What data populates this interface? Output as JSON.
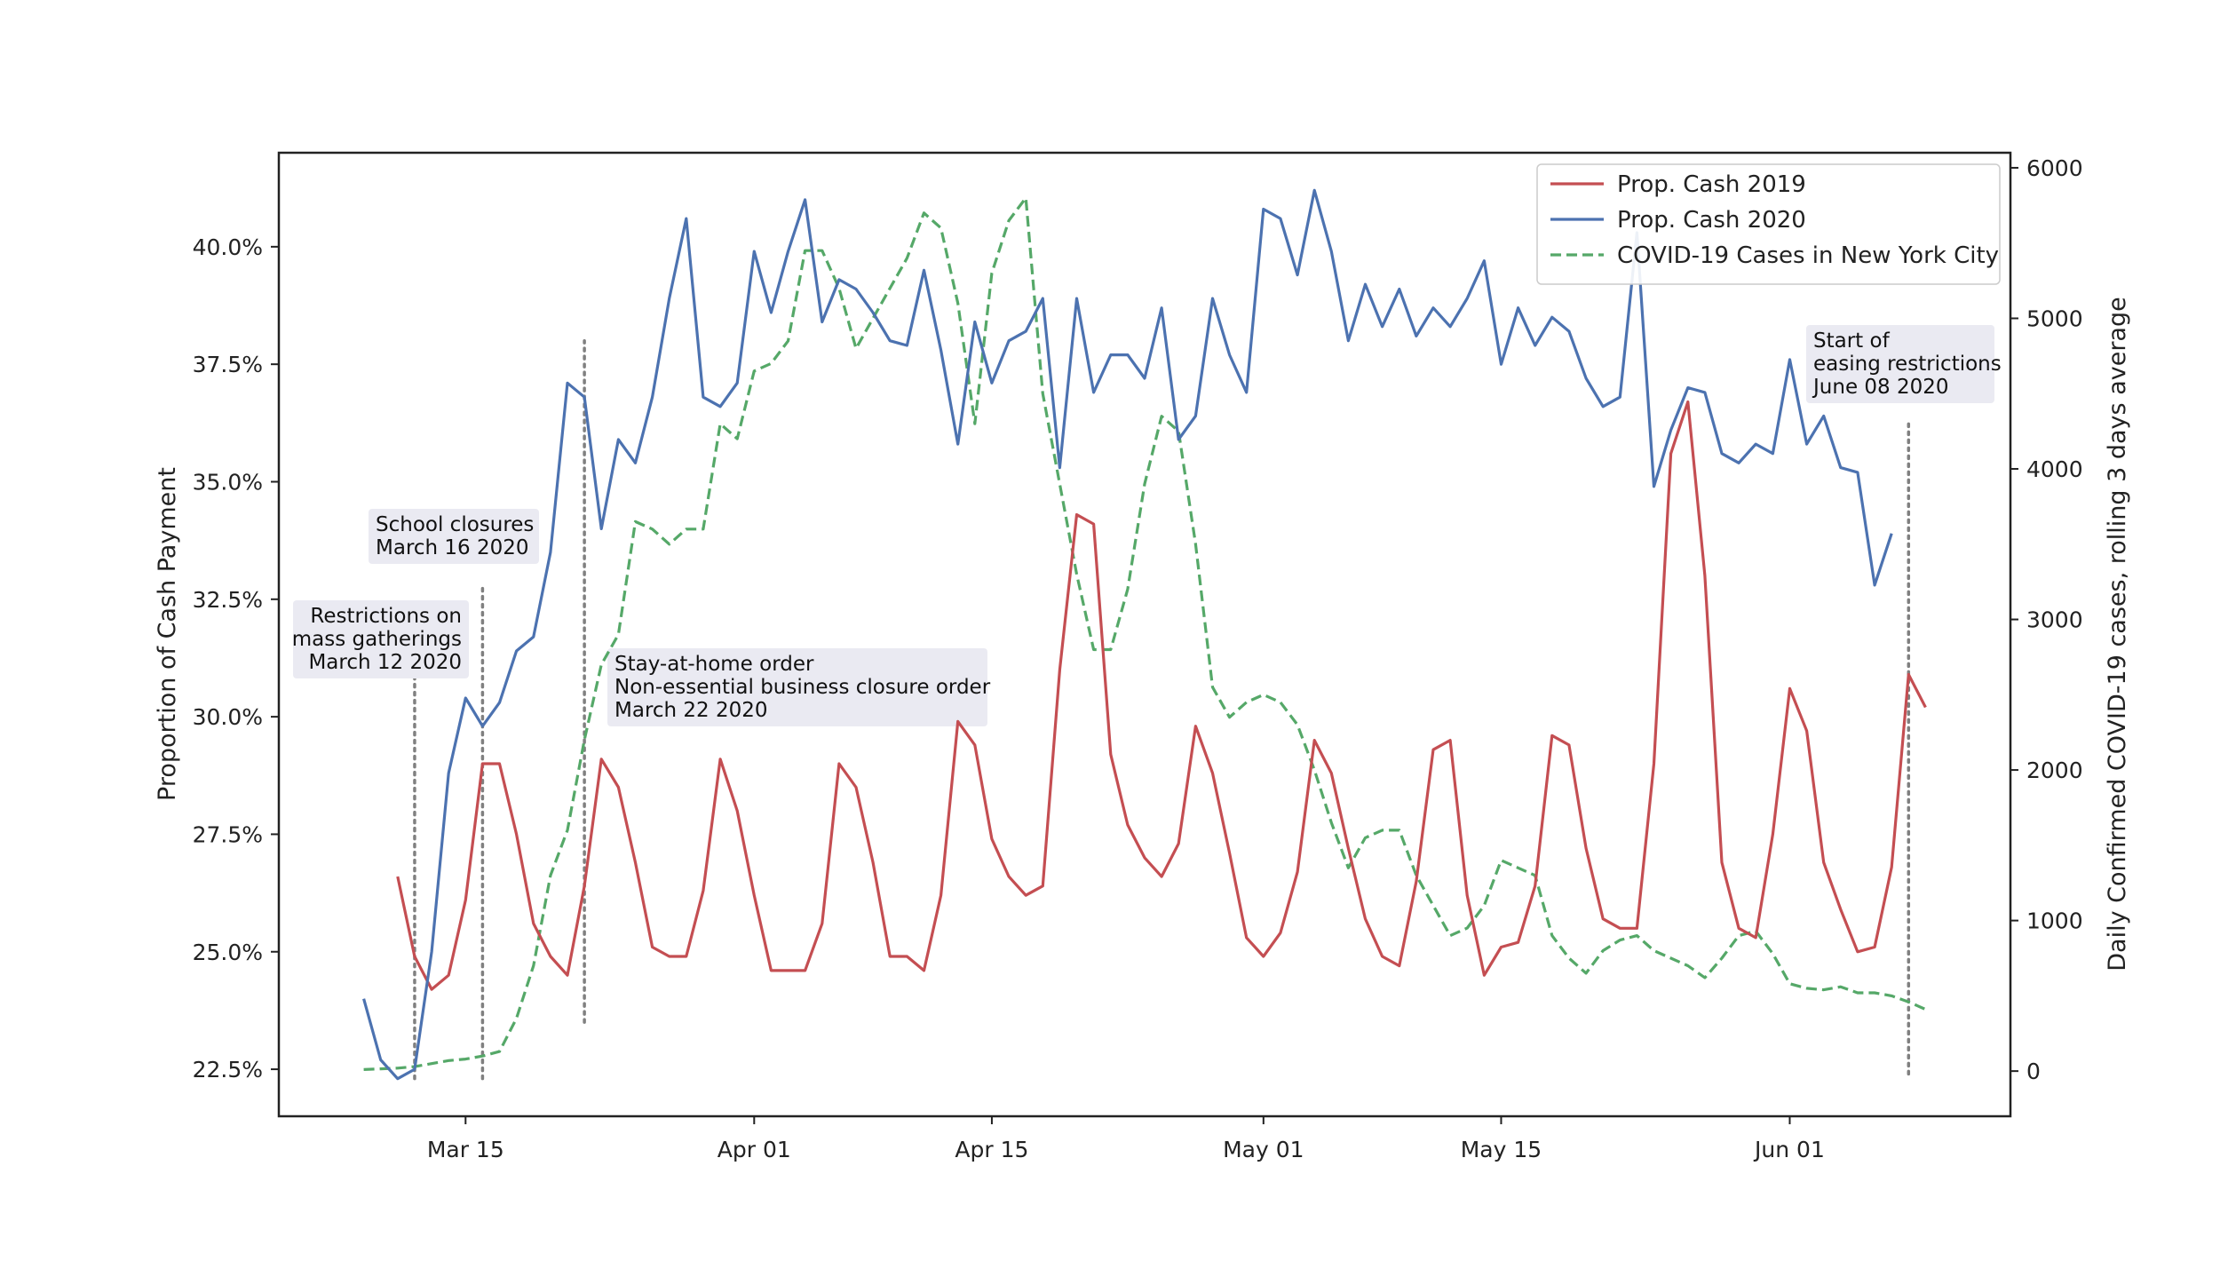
{
  "chart_data": {
    "type": "line",
    "title": "",
    "xlabel": "",
    "ylabel_left": "Proportion of Cash Payment",
    "ylabel_right": "Daily Confirmed COVID-19 cases, rolling 3 days average",
    "x_start_date": "2020-03-09",
    "x_ticks": [
      {
        "date": "2020-03-15",
        "label": "Mar 15"
      },
      {
        "date": "2020-04-01",
        "label": "Apr 01"
      },
      {
        "date": "2020-04-15",
        "label": "Apr 15"
      },
      {
        "date": "2020-05-01",
        "label": "May 01"
      },
      {
        "date": "2020-05-15",
        "label": "May 15"
      },
      {
        "date": "2020-06-01",
        "label": "Jun 01"
      }
    ],
    "xlim": [
      "2020-03-04",
      "2020-06-14"
    ],
    "ylim_left": [
      21.5,
      42
    ],
    "yticks_left": [
      {
        "value": 22.5,
        "label": "22.5%"
      },
      {
        "value": 25.0,
        "label": "25.0%"
      },
      {
        "value": 27.5,
        "label": "27.5%"
      },
      {
        "value": 30.0,
        "label": "30.0%"
      },
      {
        "value": 32.5,
        "label": "32.5%"
      },
      {
        "value": 35.0,
        "label": "35.0%"
      },
      {
        "value": 37.5,
        "label": "37.5%"
      },
      {
        "value": 40.0,
        "label": "40.0%"
      }
    ],
    "ylim_right": [
      -300,
      6100
    ],
    "yticks_right": [
      {
        "value": 0,
        "label": "0"
      },
      {
        "value": 1000,
        "label": "1000"
      },
      {
        "value": 2000,
        "label": "2000"
      },
      {
        "value": 3000,
        "label": "3000"
      },
      {
        "value": 4000,
        "label": "4000"
      },
      {
        "value": 5000,
        "label": "5000"
      },
      {
        "value": 6000,
        "label": "6000"
      }
    ],
    "grid": false,
    "legend_position": "top-right",
    "series": [
      {
        "name": "Prop. Cash 2019",
        "color": "#c44e52",
        "dash": "solid",
        "axis": "left",
        "start_date": "2020-03-11",
        "values": [
          26.6,
          24.9,
          24.2,
          24.5,
          26.1,
          29.0,
          29.0,
          27.5,
          25.6,
          24.9,
          24.5,
          26.4,
          29.1,
          28.5,
          26.9,
          25.1,
          24.9,
          24.9,
          26.3,
          29.1,
          28.0,
          26.2,
          24.6,
          24.6,
          24.6,
          25.6,
          29.0,
          28.5,
          26.9,
          24.9,
          24.9,
          24.6,
          26.2,
          29.9,
          29.4,
          27.4,
          26.6,
          26.2,
          26.4,
          31.0,
          34.3,
          34.1,
          29.2,
          27.7,
          27.0,
          26.6,
          27.3,
          29.8,
          28.8,
          27.1,
          25.3,
          24.9,
          25.4,
          26.7,
          29.5,
          28.8,
          27.2,
          25.7,
          24.9,
          24.7,
          26.5,
          29.3,
          29.5,
          26.2,
          24.5,
          25.1,
          25.2,
          26.4,
          29.6,
          29.4,
          27.2,
          25.7,
          25.5,
          25.5,
          29.0,
          35.6,
          36.7,
          33.0,
          26.9,
          25.5,
          25.3,
          27.5,
          30.6,
          29.7,
          26.9,
          25.9,
          25.0,
          25.1,
          26.8,
          30.9,
          30.2
        ]
      },
      {
        "name": "Prop. Cash 2020",
        "color": "#4c72b0",
        "dash": "solid",
        "axis": "left",
        "start_date": "2020-03-09",
        "values": [
          24.0,
          22.7,
          22.3,
          22.5,
          25.0,
          28.8,
          30.4,
          29.8,
          30.3,
          31.4,
          31.7,
          33.5,
          37.1,
          36.8,
          34.0,
          35.9,
          35.4,
          36.8,
          38.9,
          40.6,
          36.8,
          36.6,
          37.1,
          39.9,
          38.6,
          39.9,
          41.0,
          38.4,
          39.3,
          39.1,
          38.6,
          38.0,
          37.9,
          39.5,
          37.8,
          35.8,
          38.4,
          37.1,
          38.0,
          38.2,
          38.9,
          35.3,
          38.9,
          36.9,
          37.7,
          37.7,
          37.2,
          38.7,
          35.9,
          36.4,
          38.9,
          37.7,
          36.9,
          40.8,
          40.6,
          39.4,
          41.2,
          39.9,
          38.0,
          39.2,
          38.3,
          39.1,
          38.1,
          38.7,
          38.3,
          38.9,
          39.7,
          37.5,
          38.7,
          37.9,
          38.5,
          38.2,
          37.2,
          36.6,
          36.8,
          40.3,
          34.9,
          36.1,
          37.0,
          36.9,
          35.6,
          35.4,
          35.8,
          35.6,
          37.6,
          35.8,
          36.4,
          35.3,
          35.2,
          32.8,
          33.9
        ]
      },
      {
        "name": "COVID-19 Cases in New York City",
        "color": "#55a868",
        "dash": "dashed",
        "axis": "right",
        "start_date": "2020-03-09",
        "values": [
          10,
          15,
          20,
          30,
          50,
          70,
          80,
          100,
          130,
          350,
          700,
          1300,
          1600,
          2200,
          2700,
          2900,
          3650,
          3600,
          3500,
          3600,
          3600,
          4300,
          4200,
          4650,
          4700,
          4850,
          5450,
          5450,
          5200,
          4800,
          5000,
          5200,
          5400,
          5700,
          5600,
          5100,
          4300,
          5300,
          5650,
          5800,
          4500,
          3900,
          3300,
          2800,
          2800,
          3200,
          3900,
          4350,
          4250,
          3500,
          2550,
          2350,
          2450,
          2500,
          2450,
          2300,
          2000,
          1650,
          1350,
          1550,
          1600,
          1600,
          1300,
          1100,
          900,
          950,
          1100,
          1400,
          1350,
          1300,
          900,
          750,
          650,
          800,
          870,
          900,
          800,
          750,
          700,
          620,
          750,
          900,
          930,
          780,
          580,
          550,
          540,
          560,
          520,
          520,
          500,
          460,
          410
        ]
      }
    ],
    "annotations": [
      {
        "lines": [
          "Restrictions on",
          "mass gatherings",
          "March 12 2020"
        ],
        "date": "2020-03-12",
        "align": "right"
      },
      {
        "lines": [
          "School closures",
          "March 16 2020"
        ],
        "date": "2020-03-16",
        "align": "left"
      },
      {
        "lines": [
          "Stay-at-home order",
          "Non-essential business closure order",
          "March 22 2020"
        ],
        "date": "2020-03-22",
        "align": "left"
      },
      {
        "lines": [
          "Start of",
          "easing restrictions",
          "June 08 2020"
        ],
        "date": "2020-06-08",
        "align": "left"
      }
    ],
    "annotation_box_color": "#eaeaf2",
    "vline_color": "#808080"
  }
}
